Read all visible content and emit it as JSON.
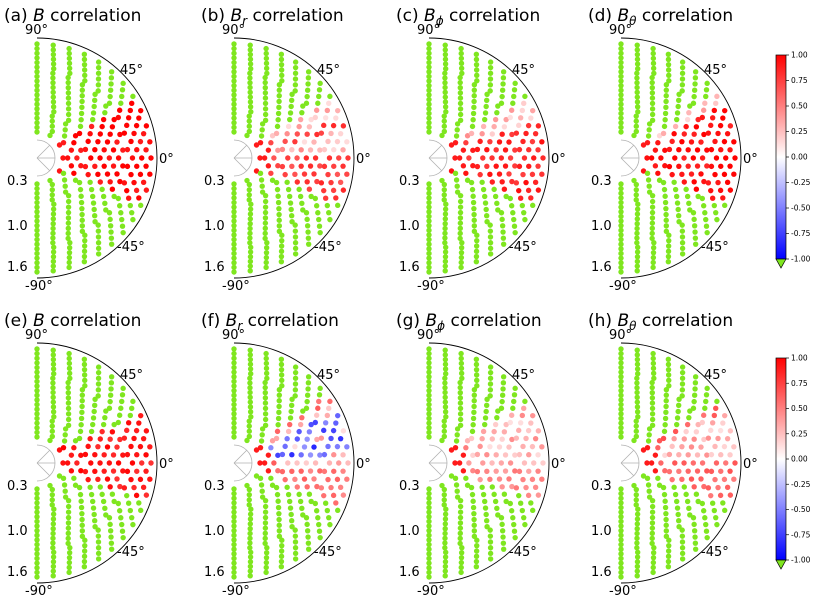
{
  "figure": {
    "colorbar": {
      "min": -1.0,
      "max": 1.0,
      "ticks": [
        "1.00",
        "0.75",
        "0.50",
        "0.25",
        "0.00",
        "-0.25",
        "-0.50",
        "-0.75",
        "-1.00"
      ],
      "colors": {
        "low": "#0000ff",
        "mid": "#ffffff",
        "high": "#ff0000",
        "under": "#7fe61f"
      },
      "extend": "min"
    },
    "polar_axes": {
      "angle_labels": [
        "90°",
        "45°",
        "0°",
        "-45°",
        "-90°"
      ],
      "radius_labels": [
        "0.3",
        "1.0",
        "1.6"
      ]
    }
  },
  "chart_data": [
    {
      "type": "scatter",
      "panel": "(a)",
      "var": "B",
      "sub": "",
      "title_rest": " correlation",
      "row": "top",
      "pattern": {
        "green_lat_min": 31,
        "green_lat_max": -24,
        "mean_corr": 0.97,
        "near_zero_lat": []
      }
    },
    {
      "type": "scatter",
      "panel": "(b)",
      "var": "B",
      "sub": "r",
      "title_rest": " correlation",
      "row": "top",
      "pattern": {
        "green_lat_min": 31,
        "green_lat_max": -24,
        "mean_corr": 0.75,
        "near_zero_lat": [
          8,
          28
        ]
      }
    },
    {
      "type": "scatter",
      "panel": "(c)",
      "var": "B",
      "sub": "ϕ",
      "title_rest": " correlation",
      "row": "top",
      "pattern": {
        "green_lat_min": 30,
        "green_lat_max": -24,
        "mean_corr": 0.85,
        "near_zero_lat": [
          25
        ]
      }
    },
    {
      "type": "scatter",
      "panel": "(d)",
      "var": "B",
      "sub": "θ",
      "title_rest": " correlation",
      "row": "top",
      "pattern": {
        "green_lat_min": 34,
        "green_lat_max": -24,
        "mean_corr": 0.95,
        "near_zero_lat": [
          36
        ]
      }
    },
    {
      "type": "scatter",
      "panel": "(e)",
      "var": "B",
      "sub": "",
      "title_rest": " correlation",
      "row": "bottom",
      "pattern": {
        "green_lat_min": 26,
        "green_lat_max": -18,
        "mean_corr": 0.9,
        "near_zero_lat": [
          40
        ]
      }
    },
    {
      "type": "scatter",
      "panel": "(f)",
      "var": "B",
      "sub": "r",
      "title_rest": " correlation",
      "row": "bottom",
      "pattern": {
        "green_lat_min": 36,
        "green_lat_max": -22,
        "mean_corr": 0.55,
        "near_zero_lat": [
          5,
          15,
          25
        ],
        "negative_lat": [
          10,
          22
        ]
      }
    },
    {
      "type": "scatter",
      "panel": "(g)",
      "var": "B",
      "sub": "ϕ",
      "title_rest": " correlation",
      "row": "bottom",
      "pattern": {
        "green_lat_min": 30,
        "green_lat_max": -18,
        "mean_corr": 0.45,
        "near_zero_lat": [
          5,
          15,
          25,
          35
        ]
      }
    },
    {
      "type": "scatter",
      "panel": "(h)",
      "var": "B",
      "sub": "θ",
      "title_rest": " correlation",
      "row": "bottom",
      "pattern": {
        "green_lat_min": 32,
        "green_lat_max": -20,
        "mean_corr": 0.6,
        "near_zero_lat": [
          10,
          20
        ],
        "negative_lat": [
          35
        ]
      }
    }
  ]
}
